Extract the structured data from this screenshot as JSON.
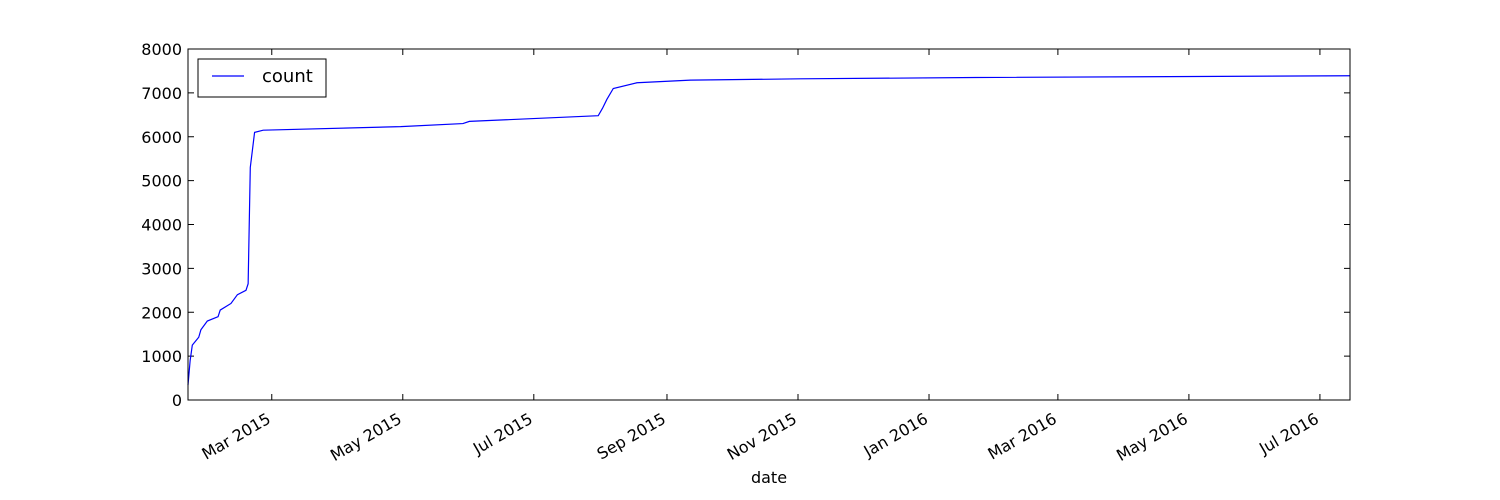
{
  "chart_data": {
    "type": "line",
    "x_label": "date",
    "x": [
      "2015-01-21",
      "2015-01-22",
      "2015-01-23",
      "2015-01-26",
      "2015-01-27",
      "2015-01-30",
      "2015-02-04",
      "2015-02-05",
      "2015-02-10",
      "2015-02-13",
      "2015-02-17",
      "2015-02-18",
      "2015-02-19",
      "2015-02-20",
      "2015-02-21",
      "2015-02-25",
      "2015-04-30",
      "2015-05-29",
      "2015-06-01",
      "2015-07-31",
      "2015-08-02",
      "2015-08-04",
      "2015-08-07",
      "2015-08-18",
      "2015-09-12",
      "2015-11-02",
      "2016-01-23",
      "2016-07-15"
    ],
    "series": [
      {
        "name": "count",
        "color": "#0000ff",
        "values": [
          340,
          900,
          1250,
          1430,
          1600,
          1800,
          1900,
          2050,
          2200,
          2400,
          2500,
          2650,
          5300,
          5700,
          6100,
          6150,
          6230,
          6300,
          6350,
          6480,
          6650,
          6850,
          7100,
          7230,
          7290,
          7320,
          7350,
          7390
        ]
      }
    ],
    "xlim": [
      "2015-01-21",
      "2016-07-15"
    ],
    "xticks": [
      {
        "value": "2015-03-01",
        "label": "Mar 2015"
      },
      {
        "value": "2015-05-01",
        "label": "May 2015"
      },
      {
        "value": "2015-07-01",
        "label": "Jul 2015"
      },
      {
        "value": "2015-09-01",
        "label": "Sep 2015"
      },
      {
        "value": "2015-11-01",
        "label": "Nov 2015"
      },
      {
        "value": "2016-01-01",
        "label": "Jan 2016"
      },
      {
        "value": "2016-03-01",
        "label": "Mar 2016"
      },
      {
        "value": "2016-05-01",
        "label": "May 2016"
      },
      {
        "value": "2016-07-01",
        "label": "Jul 2016"
      }
    ],
    "ylim": [
      0,
      8000
    ],
    "yticks": [
      0,
      1000,
      2000,
      3000,
      4000,
      5000,
      6000,
      7000,
      8000
    ],
    "legend": "upper left"
  }
}
